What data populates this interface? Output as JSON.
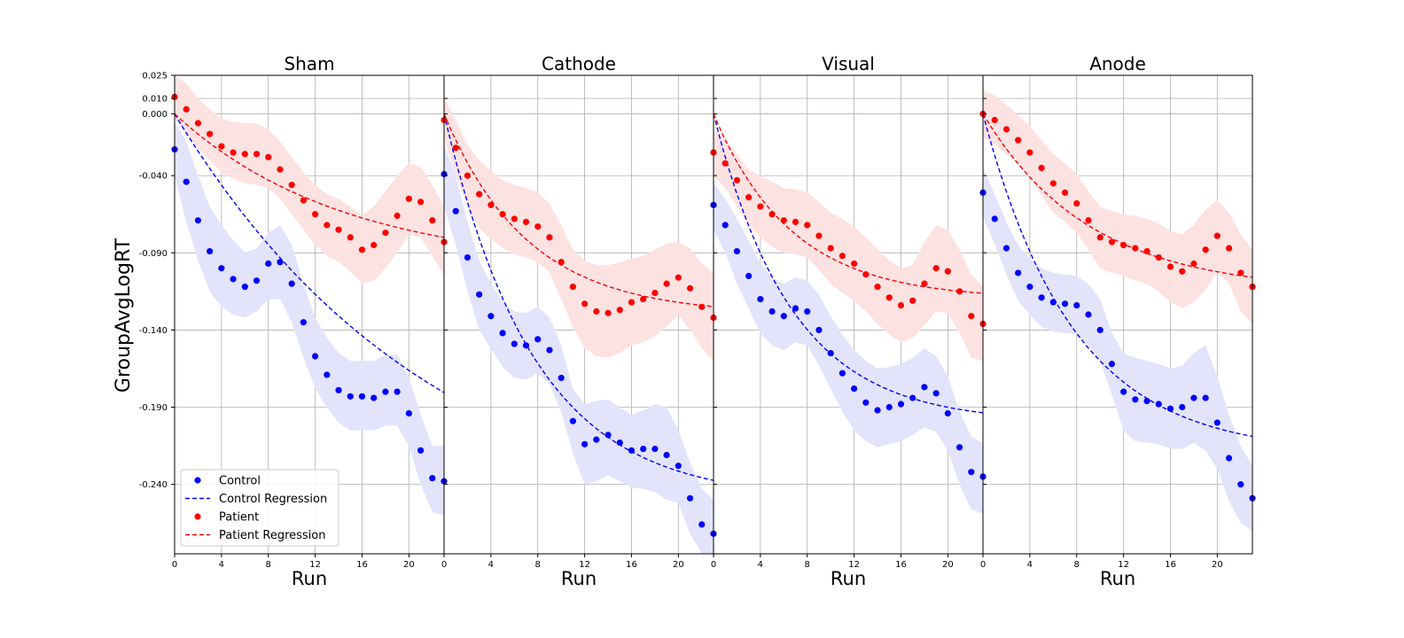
{
  "figure": {
    "ylabel": "GroupAvgLogRT",
    "xlabel": "Run"
  },
  "axes": {
    "ylim": [
      -0.285,
      0.025
    ],
    "yticks": [
      0.025,
      0.01,
      0.0,
      -0.04,
      -0.09,
      -0.14,
      -0.19,
      -0.24
    ],
    "ytick_labels": [
      "0.025",
      "0.010",
      "0.000",
      "-0.040",
      "-0.090",
      "-0.140",
      "-0.190",
      "-0.240"
    ],
    "xlim": [
      0,
      23
    ],
    "xticks": [
      0,
      4,
      8,
      12,
      16,
      20
    ],
    "xtick_labels": [
      "0",
      "4",
      "8",
      "12",
      "16",
      "20"
    ],
    "grid": true
  },
  "colors": {
    "control": "#0000ff",
    "patient": "#ff0000",
    "control_band": "#e3e3fb",
    "patient_band": "#fde2e2",
    "grid": "#b0b0b0"
  },
  "legend": {
    "placement": "lower-left",
    "entries": [
      {
        "label": "Control",
        "kind": "marker",
        "color": "#0000ff"
      },
      {
        "label": "Control Regression",
        "kind": "dashed",
        "color": "#0000ff"
      },
      {
        "label": "Patient",
        "kind": "marker",
        "color": "#ff0000"
      },
      {
        "label": "Patient Regression",
        "kind": "dashed",
        "color": "#ff0000"
      }
    ]
  },
  "chart_data": [
    {
      "type": "scatter",
      "title": "Sham",
      "x": [
        0,
        1,
        2,
        3,
        4,
        5,
        6,
        7,
        8,
        9,
        10,
        11,
        12,
        13,
        14,
        15,
        16,
        17,
        18,
        19,
        20,
        21,
        22,
        23
      ],
      "series": [
        {
          "name": "Control",
          "values": [
            -0.023,
            -0.044,
            -0.069,
            -0.089,
            -0.1,
            -0.107,
            -0.112,
            -0.108,
            -0.097,
            -0.096,
            -0.11,
            -0.135,
            -0.157,
            -0.169,
            -0.179,
            -0.183,
            -0.183,
            -0.184,
            -0.18,
            -0.18,
            -0.194,
            -0.218,
            -0.236,
            -0.238
          ],
          "band_upper": [
            -0.005,
            -0.018,
            -0.04,
            -0.06,
            -0.072,
            -0.082,
            -0.09,
            -0.087,
            -0.077,
            -0.072,
            -0.085,
            -0.11,
            -0.132,
            -0.145,
            -0.155,
            -0.16,
            -0.16,
            -0.16,
            -0.156,
            -0.156,
            -0.17,
            -0.195,
            -0.215,
            -0.215
          ],
          "band_lower": [
            -0.04,
            -0.07,
            -0.095,
            -0.115,
            -0.125,
            -0.13,
            -0.132,
            -0.128,
            -0.12,
            -0.12,
            -0.135,
            -0.158,
            -0.178,
            -0.19,
            -0.2,
            -0.205,
            -0.205,
            -0.205,
            -0.202,
            -0.202,
            -0.215,
            -0.24,
            -0.258,
            -0.26
          ],
          "regression": {
            "a": -0.28,
            "b": 0.045
          }
        },
        {
          "name": "Patient",
          "values": [
            0.011,
            0.003,
            -0.006,
            -0.013,
            -0.021,
            -0.025,
            -0.026,
            -0.026,
            -0.028,
            -0.036,
            -0.046,
            -0.056,
            -0.065,
            -0.072,
            -0.075,
            -0.08,
            -0.088,
            -0.085,
            -0.077,
            -0.066,
            -0.055,
            -0.057,
            -0.069,
            -0.083
          ],
          "band_upper": [
            0.025,
            0.02,
            0.01,
            0.003,
            -0.003,
            -0.005,
            -0.006,
            -0.006,
            -0.01,
            -0.018,
            -0.028,
            -0.038,
            -0.046,
            -0.052,
            -0.055,
            -0.06,
            -0.066,
            -0.06,
            -0.05,
            -0.04,
            -0.032,
            -0.034,
            -0.046,
            -0.06
          ],
          "band_lower": [
            -0.003,
            -0.013,
            -0.022,
            -0.03,
            -0.038,
            -0.042,
            -0.045,
            -0.046,
            -0.048,
            -0.055,
            -0.065,
            -0.075,
            -0.085,
            -0.092,
            -0.096,
            -0.102,
            -0.11,
            -0.108,
            -0.1,
            -0.09,
            -0.078,
            -0.08,
            -0.092,
            -0.105
          ],
          "regression": {
            "a": -0.1,
            "b": 0.07
          }
        }
      ]
    },
    {
      "type": "scatter",
      "title": "Cathode",
      "x": [
        0,
        1,
        2,
        3,
        4,
        5,
        6,
        7,
        8,
        9,
        10,
        11,
        12,
        13,
        14,
        15,
        16,
        17,
        18,
        19,
        20,
        21,
        22,
        23
      ],
      "series": [
        {
          "name": "Control",
          "values": [
            -0.039,
            -0.063,
            -0.093,
            -0.117,
            -0.131,
            -0.142,
            -0.149,
            -0.15,
            -0.146,
            -0.153,
            -0.171,
            -0.199,
            -0.214,
            -0.211,
            -0.208,
            -0.213,
            -0.218,
            -0.217,
            -0.217,
            -0.221,
            -0.228,
            -0.249,
            -0.266,
            -0.272
          ],
          "band_upper": [
            -0.02,
            -0.04,
            -0.07,
            -0.095,
            -0.11,
            -0.121,
            -0.128,
            -0.129,
            -0.125,
            -0.132,
            -0.15,
            -0.178,
            -0.188,
            -0.186,
            -0.185,
            -0.19,
            -0.195,
            -0.192,
            -0.188,
            -0.19,
            -0.205,
            -0.226,
            -0.243,
            -0.25
          ],
          "band_lower": [
            -0.06,
            -0.085,
            -0.115,
            -0.14,
            -0.152,
            -0.164,
            -0.171,
            -0.172,
            -0.168,
            -0.175,
            -0.193,
            -0.22,
            -0.24,
            -0.238,
            -0.234,
            -0.238,
            -0.242,
            -0.243,
            -0.245,
            -0.25,
            -0.252,
            -0.272,
            -0.285,
            -0.285
          ],
          "regression": {
            "a": -0.25,
            "b": 0.13
          }
        },
        {
          "name": "Patient",
          "values": [
            -0.004,
            -0.022,
            -0.04,
            -0.052,
            -0.059,
            -0.065,
            -0.068,
            -0.07,
            -0.073,
            -0.08,
            -0.096,
            -0.112,
            -0.123,
            -0.128,
            -0.129,
            -0.127,
            -0.122,
            -0.12,
            -0.116,
            -0.11,
            -0.106,
            -0.113,
            -0.125,
            -0.132
          ],
          "band_upper": [
            0.01,
            -0.004,
            -0.02,
            -0.03,
            -0.037,
            -0.043,
            -0.046,
            -0.048,
            -0.051,
            -0.058,
            -0.072,
            -0.088,
            -0.095,
            -0.098,
            -0.098,
            -0.096,
            -0.094,
            -0.092,
            -0.088,
            -0.084,
            -0.083,
            -0.087,
            -0.097,
            -0.103
          ],
          "band_lower": [
            -0.016,
            -0.04,
            -0.06,
            -0.074,
            -0.081,
            -0.087,
            -0.091,
            -0.093,
            -0.096,
            -0.103,
            -0.12,
            -0.138,
            -0.152,
            -0.157,
            -0.158,
            -0.155,
            -0.15,
            -0.148,
            -0.144,
            -0.138,
            -0.13,
            -0.14,
            -0.152,
            -0.16
          ],
          "regression": {
            "a": -0.13,
            "b": 0.14
          }
        }
      ]
    },
    {
      "type": "scatter",
      "title": "Visual",
      "x": [
        0,
        1,
        2,
        3,
        4,
        5,
        6,
        7,
        8,
        9,
        10,
        11,
        12,
        13,
        14,
        15,
        16,
        17,
        18,
        19,
        20,
        21,
        22,
        23
      ],
      "series": [
        {
          "name": "Control",
          "values": [
            -0.059,
            -0.072,
            -0.089,
            -0.105,
            -0.12,
            -0.128,
            -0.131,
            -0.126,
            -0.128,
            -0.14,
            -0.155,
            -0.168,
            -0.178,
            -0.187,
            -0.192,
            -0.19,
            -0.188,
            -0.184,
            -0.177,
            -0.181,
            -0.194,
            -0.216,
            -0.232,
            -0.235
          ],
          "band_upper": [
            -0.045,
            -0.055,
            -0.068,
            -0.082,
            -0.097,
            -0.106,
            -0.11,
            -0.106,
            -0.108,
            -0.117,
            -0.131,
            -0.143,
            -0.153,
            -0.16,
            -0.165,
            -0.164,
            -0.162,
            -0.158,
            -0.152,
            -0.157,
            -0.17,
            -0.193,
            -0.209,
            -0.213
          ],
          "band_lower": [
            -0.075,
            -0.09,
            -0.11,
            -0.126,
            -0.142,
            -0.15,
            -0.153,
            -0.148,
            -0.15,
            -0.163,
            -0.178,
            -0.193,
            -0.205,
            -0.212,
            -0.216,
            -0.214,
            -0.212,
            -0.208,
            -0.203,
            -0.206,
            -0.218,
            -0.24,
            -0.256,
            -0.259
          ],
          "regression": {
            "a": -0.2,
            "b": 0.15
          }
        },
        {
          "name": "Patient",
          "values": [
            -0.025,
            -0.032,
            -0.043,
            -0.054,
            -0.06,
            -0.065,
            -0.069,
            -0.07,
            -0.072,
            -0.079,
            -0.087,
            -0.092,
            -0.097,
            -0.104,
            -0.112,
            -0.119,
            -0.124,
            -0.121,
            -0.11,
            -0.1,
            -0.102,
            -0.115,
            -0.131,
            -0.136
          ],
          "band_upper": [
            -0.01,
            -0.016,
            -0.026,
            -0.036,
            -0.04,
            -0.044,
            -0.048,
            -0.049,
            -0.051,
            -0.057,
            -0.064,
            -0.068,
            -0.073,
            -0.08,
            -0.088,
            -0.095,
            -0.1,
            -0.098,
            -0.083,
            -0.072,
            -0.075,
            -0.088,
            -0.104,
            -0.112
          ],
          "band_lower": [
            -0.04,
            -0.048,
            -0.06,
            -0.072,
            -0.08,
            -0.086,
            -0.09,
            -0.091,
            -0.093,
            -0.101,
            -0.11,
            -0.116,
            -0.121,
            -0.128,
            -0.136,
            -0.143,
            -0.148,
            -0.145,
            -0.137,
            -0.128,
            -0.129,
            -0.142,
            -0.158,
            -0.16
          ],
          "regression": {
            "a": -0.12,
            "b": 0.15
          }
        }
      ]
    },
    {
      "type": "scatter",
      "title": "Anode",
      "x": [
        0,
        1,
        2,
        3,
        4,
        5,
        6,
        7,
        8,
        9,
        10,
        11,
        12,
        13,
        14,
        15,
        16,
        17,
        18,
        19,
        20,
        21,
        22,
        23
      ],
      "series": [
        {
          "name": "Control",
          "values": [
            -0.051,
            -0.068,
            -0.087,
            -0.103,
            -0.112,
            -0.119,
            -0.122,
            -0.123,
            -0.124,
            -0.13,
            -0.14,
            -0.162,
            -0.18,
            -0.185,
            -0.186,
            -0.188,
            -0.191,
            -0.19,
            -0.184,
            -0.184,
            -0.2,
            -0.223,
            -0.24,
            -0.249
          ],
          "band_upper": [
            -0.035,
            -0.052,
            -0.07,
            -0.085,
            -0.094,
            -0.1,
            -0.103,
            -0.104,
            -0.105,
            -0.11,
            -0.12,
            -0.142,
            -0.155,
            -0.158,
            -0.16,
            -0.162,
            -0.165,
            -0.163,
            -0.155,
            -0.15,
            -0.17,
            -0.195,
            -0.215,
            -0.228
          ],
          "band_lower": [
            -0.067,
            -0.084,
            -0.104,
            -0.121,
            -0.13,
            -0.138,
            -0.141,
            -0.142,
            -0.143,
            -0.15,
            -0.16,
            -0.182,
            -0.205,
            -0.212,
            -0.213,
            -0.214,
            -0.217,
            -0.217,
            -0.213,
            -0.218,
            -0.23,
            -0.251,
            -0.265,
            -0.27
          ],
          "regression": {
            "a": -0.22,
            "b": 0.13
          }
        },
        {
          "name": "Patient",
          "values": [
            0.0,
            -0.004,
            -0.01,
            -0.017,
            -0.025,
            -0.035,
            -0.045,
            -0.051,
            -0.058,
            -0.069,
            -0.08,
            -0.083,
            -0.085,
            -0.087,
            -0.089,
            -0.093,
            -0.099,
            -0.102,
            -0.097,
            -0.088,
            -0.079,
            -0.087,
            -0.103,
            -0.112
          ],
          "band_upper": [
            0.015,
            0.012,
            0.006,
            -0.001,
            -0.008,
            -0.017,
            -0.026,
            -0.032,
            -0.039,
            -0.05,
            -0.06,
            -0.063,
            -0.065,
            -0.066,
            -0.068,
            -0.071,
            -0.076,
            -0.078,
            -0.072,
            -0.062,
            -0.056,
            -0.064,
            -0.078,
            -0.088
          ],
          "band_lower": [
            -0.015,
            -0.02,
            -0.026,
            -0.033,
            -0.042,
            -0.053,
            -0.064,
            -0.07,
            -0.077,
            -0.088,
            -0.1,
            -0.103,
            -0.105,
            -0.108,
            -0.11,
            -0.115,
            -0.122,
            -0.126,
            -0.122,
            -0.114,
            -0.102,
            -0.11,
            -0.128,
            -0.136
          ],
          "regression": {
            "a": -0.115,
            "b": 0.11
          }
        }
      ]
    }
  ]
}
